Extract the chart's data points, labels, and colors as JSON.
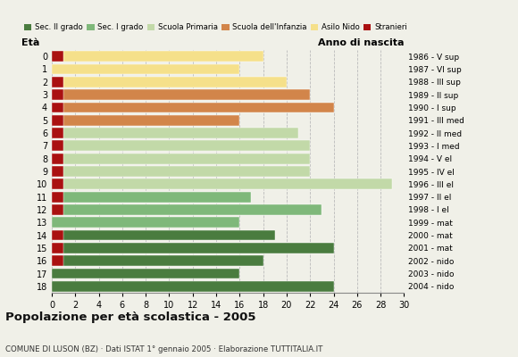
{
  "ages": [
    18,
    17,
    16,
    15,
    14,
    13,
    12,
    11,
    10,
    9,
    8,
    7,
    6,
    5,
    4,
    3,
    2,
    1,
    0
  ],
  "bar_values": [
    24,
    16,
    18,
    24,
    19,
    16,
    23,
    17,
    29,
    22,
    22,
    22,
    21,
    16,
    24,
    22,
    20,
    16,
    18
  ],
  "stranieri": [
    0,
    0,
    1,
    1,
    1,
    0,
    1,
    1,
    1,
    1,
    1,
    1,
    1,
    1,
    1,
    1,
    1,
    0,
    1
  ],
  "stranieri_value": 1,
  "bar_colors": {
    "Sec. II grado": "#4a7c3f",
    "Sec. I grado": "#7fb87a",
    "Scuola Primaria": "#c2d9a8",
    "Scuola dell'Infanzia": "#d2854a",
    "Asilo Nido": "#f5e08a",
    "Stranieri": "#aa1111"
  },
  "age_categories": {
    "18": "Sec. II grado",
    "17": "Sec. II grado",
    "16": "Sec. II grado",
    "15": "Sec. II grado",
    "14": "Sec. II grado",
    "13": "Sec. I grado",
    "12": "Sec. I grado",
    "11": "Sec. I grado",
    "10": "Scuola Primaria",
    "9": "Scuola Primaria",
    "8": "Scuola Primaria",
    "7": "Scuola Primaria",
    "6": "Scuola Primaria",
    "5": "Scuola dell'Infanzia",
    "4": "Scuola dell'Infanzia",
    "3": "Scuola dell'Infanzia",
    "2": "Asilo Nido",
    "1": "Asilo Nido",
    "0": "Asilo Nido"
  },
  "right_labels": {
    "18": "1986 - V sup",
    "17": "1987 - VI sup",
    "16": "1988 - III sup",
    "15": "1989 - II sup",
    "14": "1990 - I sup",
    "13": "1991 - III med",
    "12": "1992 - II med",
    "11": "1993 - I med",
    "10": "1994 - V el",
    "9": "1995 - IV el",
    "8": "1996 - III el",
    "7": "1997 - II el",
    "6": "1998 - I el",
    "5": "1999 - mat",
    "4": "2000 - mat",
    "3": "2001 - mat",
    "2": "2002 - nido",
    "1": "2003 - nido",
    "0": "2004 - nido"
  },
  "xlim": [
    0,
    30
  ],
  "xticks": [
    0,
    2,
    4,
    6,
    8,
    10,
    12,
    14,
    16,
    18,
    20,
    22,
    24,
    26,
    28,
    30
  ],
  "xlabel_left": "Età",
  "xlabel_right": "Anno di nascita",
  "title": "Popolazione per età scolastica - 2005",
  "subtitle": "COMUNE DI LUSON (BZ) · Dati ISTAT 1° gennaio 2005 · Elaborazione TUTTITALIA.IT",
  "bg_color": "#f0f0e8",
  "grid_color": "#bbbbbb"
}
